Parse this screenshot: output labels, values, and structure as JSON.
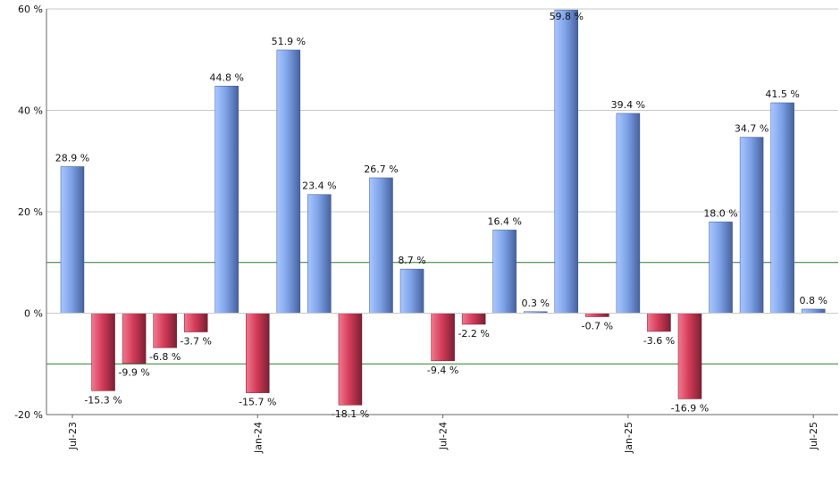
{
  "chart_data": {
    "type": "bar",
    "title": "",
    "xlabel": "",
    "ylabel": "",
    "ylim": [
      -20,
      60
    ],
    "y_ticks": [
      -20,
      0,
      20,
      40,
      60
    ],
    "y_tick_labels": [
      "-20 %",
      "0 %",
      "20 %",
      "40 %",
      "60 %"
    ],
    "x_tick_labels": [
      {
        "label": "Jul-23",
        "index": 0
      },
      {
        "label": "Jan-24",
        "index": 6
      },
      {
        "label": "Jul-24",
        "index": 12
      },
      {
        "label": "Jan-25",
        "index": 18
      },
      {
        "label": "Jul-25",
        "index": 24
      }
    ],
    "reference_lines": [
      10,
      -10
    ],
    "grid": true,
    "values": [
      28.9,
      -15.3,
      -9.9,
      -6.8,
      -3.7,
      44.8,
      -15.7,
      51.9,
      23.4,
      -18.1,
      26.7,
      8.7,
      -9.4,
      -2.2,
      16.4,
      0.3,
      59.8,
      -0.7,
      39.4,
      -3.6,
      -16.9,
      18.0,
      34.7,
      41.5,
      0.8
    ],
    "data_labels": [
      "28.9 %",
      "-15.3 %",
      "-9.9 %",
      "-6.8 %",
      "-3.7 %",
      "44.8 %",
      "-15.7 %",
      "51.9 %",
      "23.4 %",
      "-18.1 %",
      "26.7 %",
      "8.7 %",
      "-9.4 %",
      "-2.2 %",
      "16.4 %",
      "0.3 %",
      "59.8 %",
      "-0.7 %",
      "39.4 %",
      "-3.6 %",
      "-16.9 %",
      "18.0 %",
      "34.7 %",
      "41.5 %",
      "0.8 %"
    ],
    "colors": {
      "positive_light": "#a9c6ff",
      "positive_mid": "#7fa3e8",
      "positive_dark": "#45629f",
      "negative_light": "#f07a90",
      "negative_mid": "#d53c5a",
      "negative_dark": "#7d1f33",
      "gridline": "#c9c9c9",
      "reference_line": "#2f7a2f",
      "axis": "#666666"
    }
  }
}
